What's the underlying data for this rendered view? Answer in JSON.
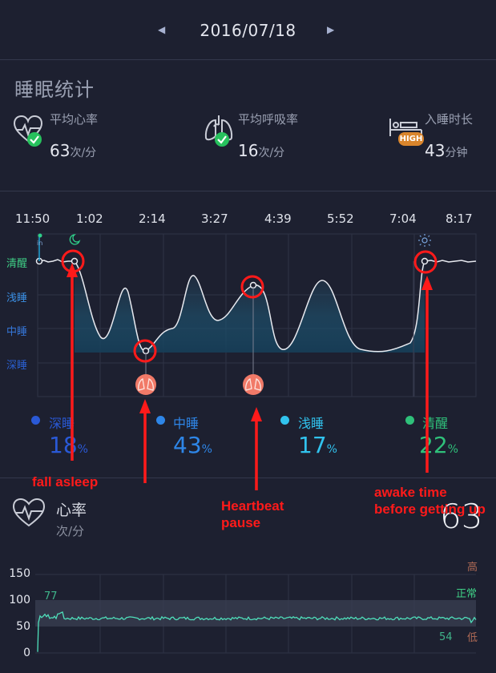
{
  "header": {
    "date": "2016/07/18",
    "prev_icon": "◀",
    "next_icon": "▶"
  },
  "sleep_stats": {
    "title": "睡眠统计",
    "avg_heart_rate": {
      "label": "平均心率",
      "value": "63",
      "unit": "次/分"
    },
    "avg_breath_rate": {
      "label": "平均呼吸率",
      "value": "16",
      "unit": "次/分"
    },
    "sleep_latency": {
      "label": "入睡时长",
      "value": "43",
      "unit": "分钟",
      "badge": "HIGH"
    }
  },
  "sleep_chart": {
    "times": [
      "11:50",
      "1:02",
      "2:14",
      "3:27",
      "4:39",
      "5:52",
      "7:04",
      "8:17"
    ],
    "levels": [
      "清醒",
      "浅睡",
      "中睡",
      "深睡"
    ],
    "level_colors": [
      "#3fcf86",
      "#3b8fe3",
      "#3575d6",
      "#2a5fd0"
    ]
  },
  "legend": [
    {
      "name": "深睡",
      "value": "18",
      "pct": "%",
      "color": "#2a59d6"
    },
    {
      "name": "中睡",
      "value": "43",
      "pct": "%",
      "color": "#2e86e8"
    },
    {
      "name": "浅睡",
      "value": "17",
      "pct": "%",
      "color": "#31c3ee"
    },
    {
      "name": "清醒",
      "value": "22",
      "pct": "%",
      "color": "#2fc07a"
    }
  ],
  "annotations": {
    "fall_asleep": "fall asleep",
    "heartbeat_pause": "Heartbeat pause",
    "awake_time": "awake time before getting up"
  },
  "heart_rate": {
    "title": "心率",
    "unit": "次/分",
    "big_value": "63",
    "y_ticks": [
      "150",
      "100",
      "50",
      "0"
    ],
    "levels": [
      "高",
      "正常",
      "低"
    ],
    "max_label": "77",
    "min_label": "54"
  }
}
